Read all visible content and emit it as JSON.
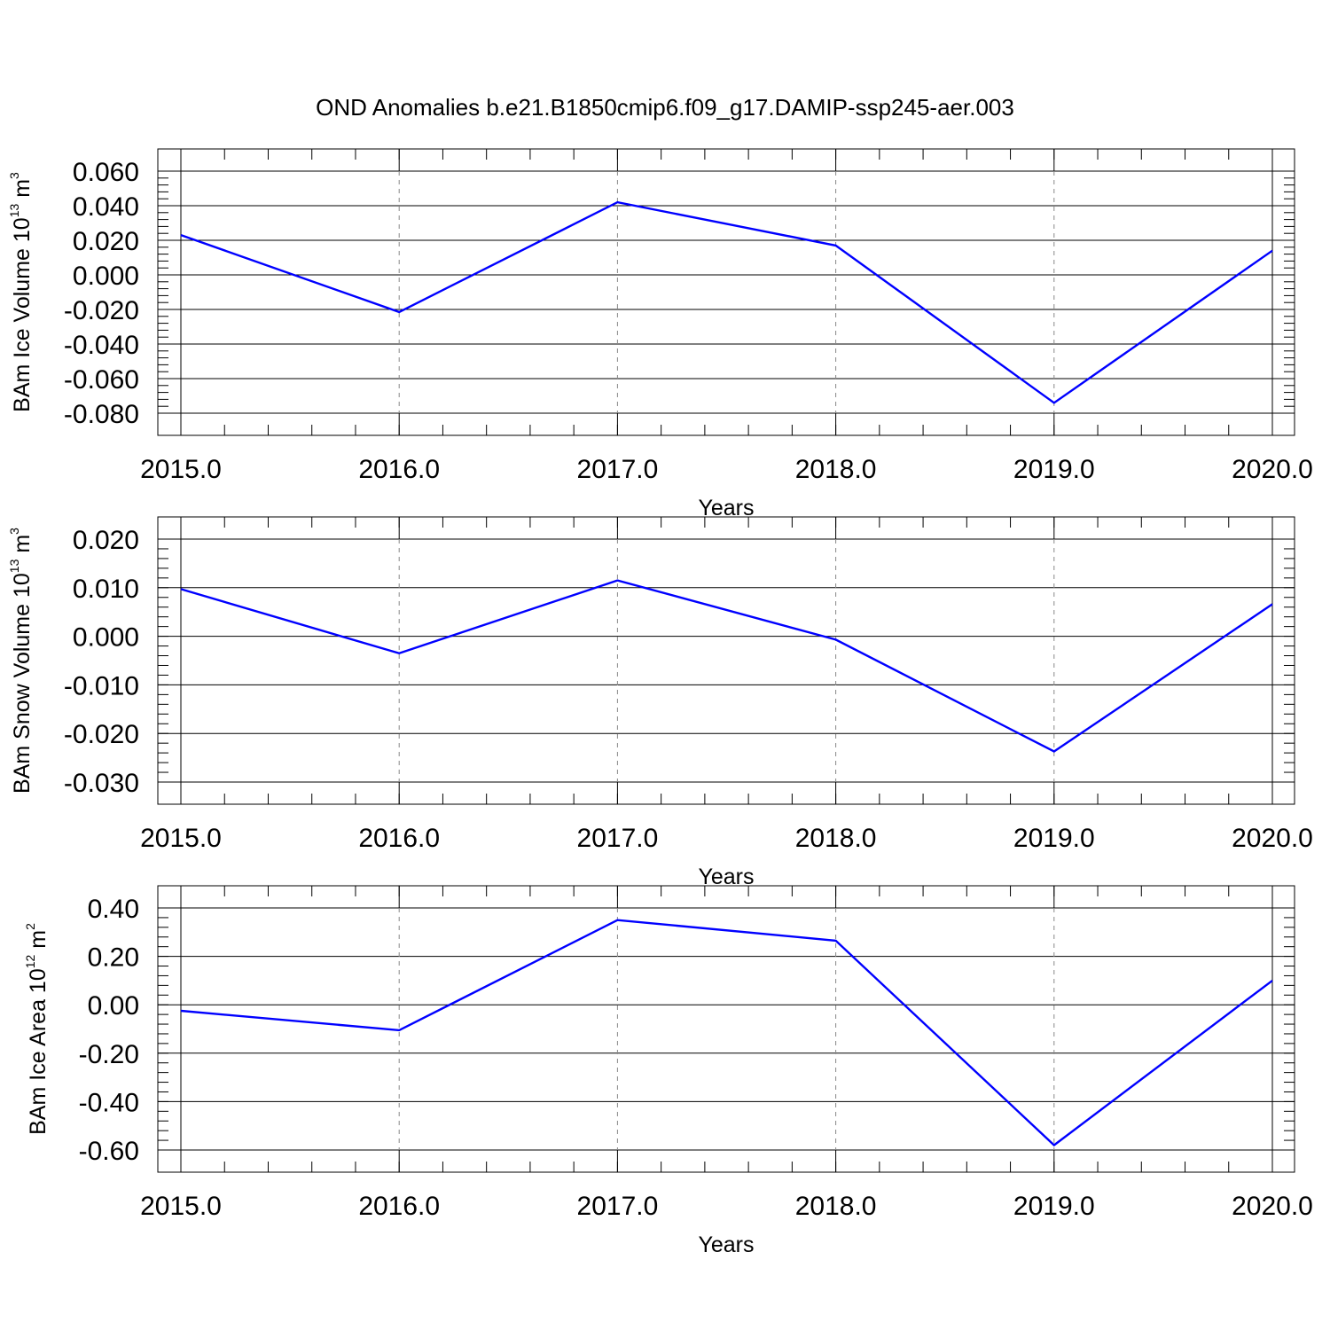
{
  "title": "OND Anomalies b.e21.B1850cmip6.f09_g17.DAMIP-ssp245-aer.003",
  "chart_data": [
    {
      "type": "line",
      "title": "",
      "xlabel": "Years",
      "ylabel": {
        "text": "BAm Ice Volume 10",
        "exp": "13",
        "unit": " m",
        "unit_exp": "3"
      },
      "x": [
        2015,
        2016,
        2017,
        2018,
        2019,
        2020
      ],
      "x_tick_labels": [
        "2015.0",
        "2016.0",
        "2017.0",
        "2018.0",
        "2019.0",
        "2020.0"
      ],
      "xlim": [
        2015,
        2020
      ],
      "ylim": [
        -0.08,
        0.06
      ],
      "y_ticks": [
        0.06,
        0.04,
        0.02,
        0.0,
        -0.02,
        -0.04,
        -0.06,
        -0.08
      ],
      "y_tick_labels": [
        "0.060",
        "0.040",
        "0.020",
        "0.000",
        "-0.020",
        "-0.040",
        "-0.060",
        "-0.080"
      ],
      "grid": "vertical dashed at major x ticks",
      "series": [
        {
          "color": "#0000ff",
          "values": [
            0.023,
            -0.0215,
            0.042,
            0.017,
            -0.074,
            0.014
          ]
        }
      ]
    },
    {
      "type": "line",
      "title": "",
      "xlabel": "Years",
      "ylabel": {
        "text": "BAm Snow Volume 10",
        "exp": "13",
        "unit": " m",
        "unit_exp": "3"
      },
      "x": [
        2015,
        2016,
        2017,
        2018,
        2019,
        2020
      ],
      "x_tick_labels": [
        "2015.0",
        "2016.0",
        "2017.0",
        "2018.0",
        "2019.0",
        "2020.0"
      ],
      "xlim": [
        2015,
        2020
      ],
      "ylim": [
        -0.03,
        0.02
      ],
      "y_ticks": [
        0.02,
        0.01,
        0.0,
        -0.01,
        -0.02,
        -0.03
      ],
      "y_tick_labels": [
        "0.020",
        "0.010",
        "0.000",
        "-0.010",
        "-0.020",
        "-0.030"
      ],
      "grid": "vertical dashed at major x ticks",
      "series": [
        {
          "color": "#0000ff",
          "values": [
            0.0097,
            -0.0035,
            0.0115,
            -0.0007,
            -0.0237,
            0.0066
          ]
        }
      ]
    },
    {
      "type": "line",
      "title": "",
      "xlabel": "Years",
      "ylabel": {
        "text": "BAm Ice Area 10",
        "exp": "12",
        "unit": " m",
        "unit_exp": "2"
      },
      "x": [
        2015,
        2016,
        2017,
        2018,
        2019,
        2020
      ],
      "x_tick_labels": [
        "2015.0",
        "2016.0",
        "2017.0",
        "2018.0",
        "2019.0",
        "2020.0"
      ],
      "xlim": [
        2015,
        2020
      ],
      "ylim": [
        -0.6,
        0.4
      ],
      "y_ticks": [
        0.4,
        0.2,
        0.0,
        -0.2,
        -0.4,
        -0.6
      ],
      "y_tick_labels": [
        "0.40",
        "0.20",
        "0.00",
        "-0.20",
        "-0.40",
        "-0.60"
      ],
      "grid": "vertical dashed at major x ticks",
      "series": [
        {
          "color": "#0000ff",
          "values": [
            -0.025,
            -0.105,
            0.35,
            0.265,
            -0.58,
            0.1
          ]
        }
      ]
    }
  ]
}
